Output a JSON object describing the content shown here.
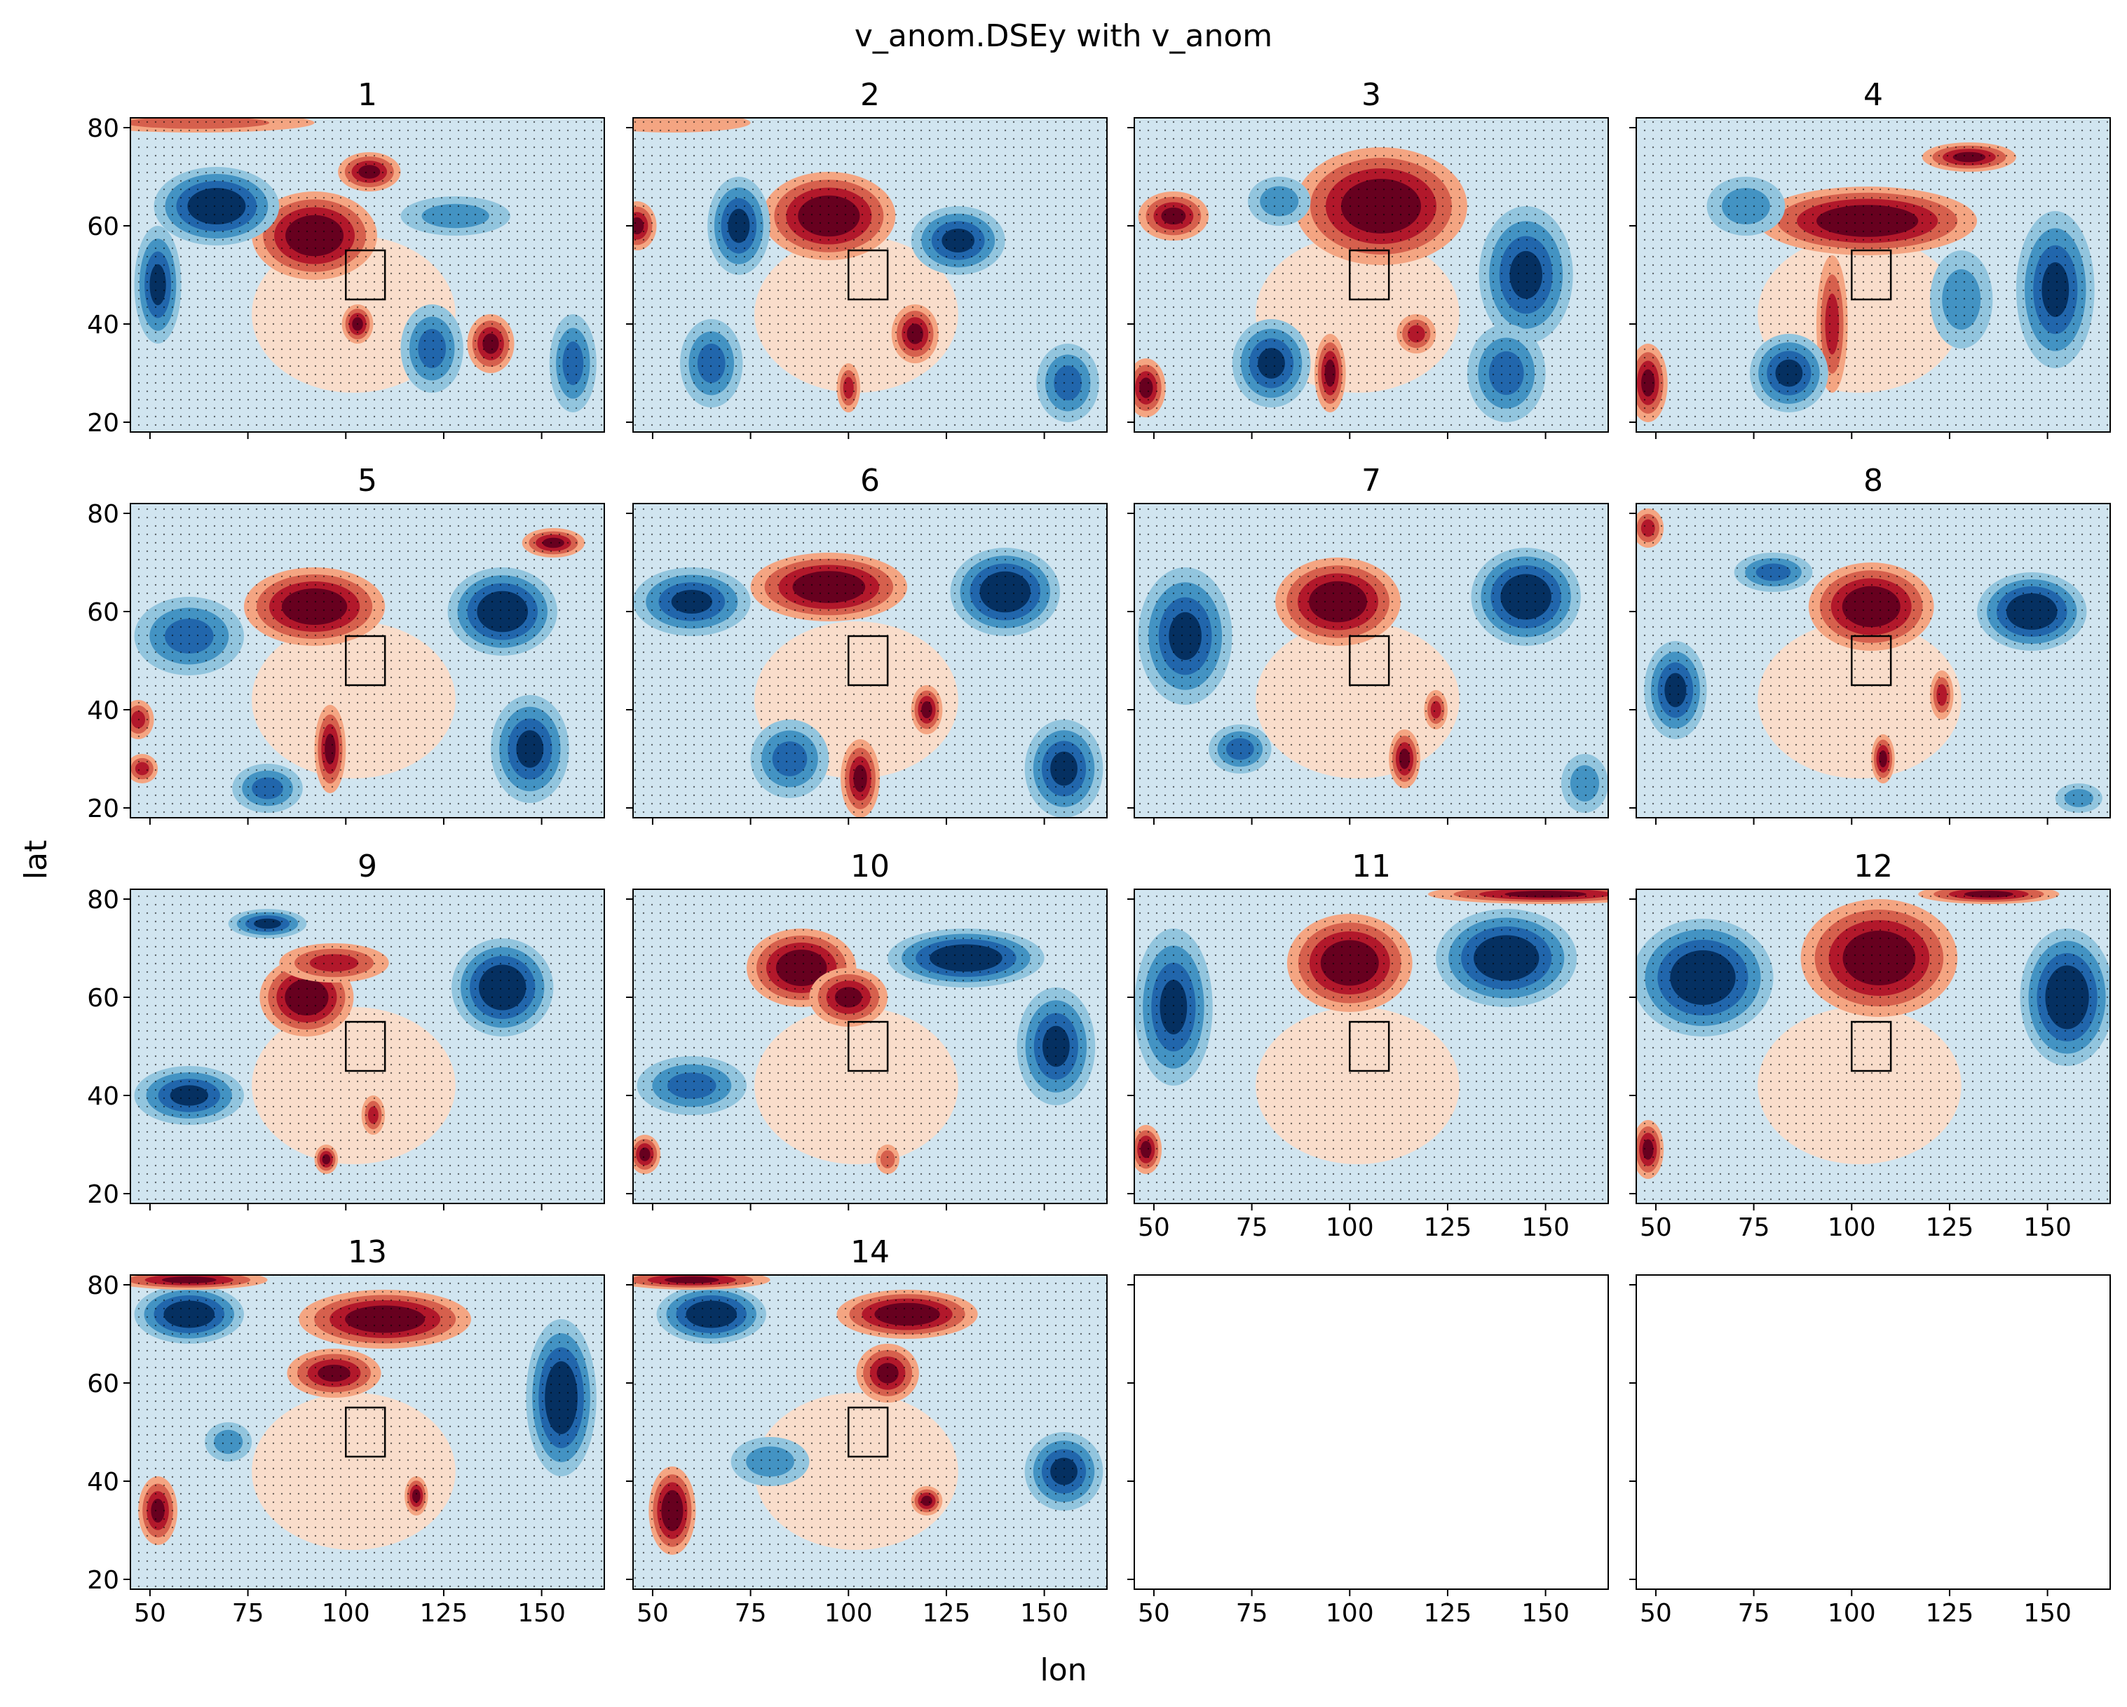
{
  "chart_data": {
    "type": "contour-quiver small multiples",
    "suptitle": "v_anom.DSEy with v_anom",
    "xlabel": "lon",
    "ylabel": "lat",
    "xlim": [
      45,
      166
    ],
    "ylim": [
      18,
      82
    ],
    "x_ticks": [
      50,
      75,
      100,
      125,
      150
    ],
    "y_ticks": [
      20,
      40,
      60,
      80
    ],
    "colormap": "RdBu_r",
    "levels_colors": [
      "#053061",
      "#2166ac",
      "#4393c3",
      "#92c5de",
      "#d1e5f0",
      "#fddbc7",
      "#f4a582",
      "#d6604d",
      "#b2182b",
      "#67001f"
    ],
    "box_region": {
      "lon": [
        100,
        110
      ],
      "lat": [
        45,
        55
      ]
    },
    "grid_layout": {
      "rows": 4,
      "cols": 4
    },
    "panels": [
      {
        "title": "1",
        "features": [
          {
            "lon": 92,
            "lat": 58,
            "w": 16,
            "h": 9,
            "value": 2.4
          },
          {
            "lon": 106,
            "lat": 71,
            "w": 8,
            "h": 4,
            "value": 1.8
          },
          {
            "lon": 103,
            "lat": 40,
            "w": 4,
            "h": 4,
            "value": 2.2
          },
          {
            "lon": 137,
            "lat": 36,
            "w": 6,
            "h": 6,
            "value": 2.0
          },
          {
            "lon": 67,
            "lat": 64,
            "w": 16,
            "h": 8,
            "value": -2.4
          },
          {
            "lon": 52,
            "lat": 48,
            "w": 6,
            "h": 12,
            "value": -1.8
          },
          {
            "lon": 122,
            "lat": 35,
            "w": 8,
            "h": 9,
            "value": -1.6
          },
          {
            "lon": 158,
            "lat": 32,
            "w": 6,
            "h": 10,
            "value": -1.5
          },
          {
            "lon": 128,
            "lat": 62,
            "w": 14,
            "h": 4,
            "value": -0.8
          },
          {
            "lon": 62,
            "lat": 81,
            "w": 30,
            "h": 2,
            "value": 1.2
          }
        ]
      },
      {
        "title": "2",
        "features": [
          {
            "lon": 95,
            "lat": 62,
            "w": 17,
            "h": 9,
            "value": 2.4
          },
          {
            "lon": 117,
            "lat": 38,
            "w": 6,
            "h": 6,
            "value": 2.0
          },
          {
            "lon": 100,
            "lat": 27,
            "w": 3,
            "h": 5,
            "value": 1.6
          },
          {
            "lon": 46,
            "lat": 60,
            "w": 5,
            "h": 5,
            "value": 2.0
          },
          {
            "lon": 72,
            "lat": 60,
            "w": 8,
            "h": 10,
            "value": -2.2
          },
          {
            "lon": 128,
            "lat": 57,
            "w": 12,
            "h": 7,
            "value": -2.2
          },
          {
            "lon": 65,
            "lat": 32,
            "w": 8,
            "h": 9,
            "value": -1.6
          },
          {
            "lon": 156,
            "lat": 28,
            "w": 8,
            "h": 8,
            "value": -1.4
          },
          {
            "lon": 55,
            "lat": 81,
            "w": 20,
            "h": 2,
            "value": 0.7
          }
        ]
      },
      {
        "title": "3",
        "features": [
          {
            "lon": 108,
            "lat": 64,
            "w": 22,
            "h": 12,
            "value": 2.4
          },
          {
            "lon": 55,
            "lat": 62,
            "w": 9,
            "h": 5,
            "value": 2.2
          },
          {
            "lon": 48,
            "lat": 27,
            "w": 5,
            "h": 6,
            "value": 2.2
          },
          {
            "lon": 95,
            "lat": 30,
            "w": 4,
            "h": 8,
            "value": 1.8
          },
          {
            "lon": 117,
            "lat": 38,
            "w": 5,
            "h": 4,
            "value": 1.6
          },
          {
            "lon": 145,
            "lat": 50,
            "w": 12,
            "h": 14,
            "value": -2.2
          },
          {
            "lon": 80,
            "lat": 32,
            "w": 10,
            "h": 9,
            "value": -2.0
          },
          {
            "lon": 140,
            "lat": 30,
            "w": 10,
            "h": 10,
            "value": -1.5
          },
          {
            "lon": 82,
            "lat": 65,
            "w": 8,
            "h": 5,
            "value": -1.2
          }
        ]
      },
      {
        "title": "4",
        "features": [
          {
            "lon": 104,
            "lat": 61,
            "w": 28,
            "h": 7,
            "value": 2.4
          },
          {
            "lon": 130,
            "lat": 74,
            "w": 12,
            "h": 3,
            "value": 1.8
          },
          {
            "lon": 95,
            "lat": 40,
            "w": 4,
            "h": 14,
            "value": 1.6
          },
          {
            "lon": 48,
            "lat": 28,
            "w": 5,
            "h": 8,
            "value": 2.0
          },
          {
            "lon": 84,
            "lat": 30,
            "w": 10,
            "h": 8,
            "value": -1.8
          },
          {
            "lon": 152,
            "lat": 47,
            "w": 10,
            "h": 16,
            "value": -2.2
          },
          {
            "lon": 73,
            "lat": 64,
            "w": 10,
            "h": 6,
            "value": -1.2
          },
          {
            "lon": 128,
            "lat": 45,
            "w": 8,
            "h": 10,
            "value": -1.0
          }
        ]
      },
      {
        "title": "5",
        "features": [
          {
            "lon": 92,
            "lat": 61,
            "w": 18,
            "h": 8,
            "value": 2.4
          },
          {
            "lon": 96,
            "lat": 32,
            "w": 4,
            "h": 9,
            "value": 2.0
          },
          {
            "lon": 48,
            "lat": 28,
            "w": 4,
            "h": 3,
            "value": 1.6
          },
          {
            "lon": 47,
            "lat": 38,
            "w": 4,
            "h": 4,
            "value": 1.6
          },
          {
            "lon": 153,
            "lat": 74,
            "w": 8,
            "h": 3,
            "value": 1.8
          },
          {
            "lon": 140,
            "lat": 60,
            "w": 14,
            "h": 9,
            "value": -2.3
          },
          {
            "lon": 147,
            "lat": 32,
            "w": 10,
            "h": 11,
            "value": -2.0
          },
          {
            "lon": 60,
            "lat": 55,
            "w": 14,
            "h": 8,
            "value": -1.6
          },
          {
            "lon": 80,
            "lat": 24,
            "w": 9,
            "h": 5,
            "value": -1.4
          }
        ]
      },
      {
        "title": "6",
        "features": [
          {
            "lon": 95,
            "lat": 65,
            "w": 20,
            "h": 7,
            "value": 2.4
          },
          {
            "lon": 103,
            "lat": 26,
            "w": 5,
            "h": 8,
            "value": 2.0
          },
          {
            "lon": 120,
            "lat": 40,
            "w": 4,
            "h": 5,
            "value": 1.8
          },
          {
            "lon": 140,
            "lat": 64,
            "w": 14,
            "h": 9,
            "value": -2.4
          },
          {
            "lon": 60,
            "lat": 62,
            "w": 15,
            "h": 7,
            "value": -2.2
          },
          {
            "lon": 155,
            "lat": 28,
            "w": 10,
            "h": 10,
            "value": -1.8
          },
          {
            "lon": 85,
            "lat": 30,
            "w": 10,
            "h": 8,
            "value": -1.4
          }
        ]
      },
      {
        "title": "7",
        "features": [
          {
            "lon": 97,
            "lat": 62,
            "w": 16,
            "h": 9,
            "value": 2.4
          },
          {
            "lon": 114,
            "lat": 30,
            "w": 4,
            "h": 6,
            "value": 2.0
          },
          {
            "lon": 122,
            "lat": 40,
            "w": 3,
            "h": 4,
            "value": 1.6
          },
          {
            "lon": 145,
            "lat": 63,
            "w": 14,
            "h": 10,
            "value": -2.4
          },
          {
            "lon": 58,
            "lat": 55,
            "w": 12,
            "h": 14,
            "value": -2.2
          },
          {
            "lon": 72,
            "lat": 32,
            "w": 8,
            "h": 5,
            "value": -1.4
          },
          {
            "lon": 160,
            "lat": 25,
            "w": 6,
            "h": 6,
            "value": -1.2
          }
        ]
      },
      {
        "title": "8",
        "features": [
          {
            "lon": 105,
            "lat": 61,
            "w": 16,
            "h": 9,
            "value": 2.4
          },
          {
            "lon": 108,
            "lat": 30,
            "w": 3,
            "h": 5,
            "value": 1.8
          },
          {
            "lon": 123,
            "lat": 43,
            "w": 3,
            "h": 5,
            "value": 1.6
          },
          {
            "lon": 48,
            "lat": 77,
            "w": 4,
            "h": 4,
            "value": 1.4
          },
          {
            "lon": 146,
            "lat": 60,
            "w": 14,
            "h": 8,
            "value": -2.4
          },
          {
            "lon": 55,
            "lat": 44,
            "w": 8,
            "h": 10,
            "value": -2.2
          },
          {
            "lon": 80,
            "lat": 68,
            "w": 10,
            "h": 4,
            "value": -1.4
          },
          {
            "lon": 158,
            "lat": 22,
            "w": 6,
            "h": 3,
            "value": -1.0
          }
        ]
      },
      {
        "title": "9",
        "features": [
          {
            "lon": 90,
            "lat": 60,
            "w": 12,
            "h": 8,
            "value": 2.4
          },
          {
            "lon": 97,
            "lat": 67,
            "w": 14,
            "h": 4,
            "value": 1.6
          },
          {
            "lon": 95,
            "lat": 27,
            "w": 3,
            "h": 3,
            "value": 1.8
          },
          {
            "lon": 107,
            "lat": 36,
            "w": 3,
            "h": 4,
            "value": 1.6
          },
          {
            "lon": 140,
            "lat": 62,
            "w": 13,
            "h": 10,
            "value": -2.4
          },
          {
            "lon": 60,
            "lat": 40,
            "w": 14,
            "h": 6,
            "value": -2.2
          },
          {
            "lon": 80,
            "lat": 75,
            "w": 10,
            "h": 3,
            "value": -1.8
          }
        ]
      },
      {
        "title": "10",
        "features": [
          {
            "lon": 88,
            "lat": 66,
            "w": 14,
            "h": 8,
            "value": 2.4
          },
          {
            "lon": 100,
            "lat": 60,
            "w": 10,
            "h": 6,
            "value": 2.2
          },
          {
            "lon": 48,
            "lat": 28,
            "w": 4,
            "h": 4,
            "value": 1.8
          },
          {
            "lon": 130,
            "lat": 68,
            "w": 20,
            "h": 6,
            "value": -2.3
          },
          {
            "lon": 153,
            "lat": 50,
            "w": 10,
            "h": 12,
            "value": -1.8
          },
          {
            "lon": 60,
            "lat": 42,
            "w": 14,
            "h": 6,
            "value": -1.6
          },
          {
            "lon": 110,
            "lat": 27,
            "w": 3,
            "h": 3,
            "value": 1.2
          }
        ]
      },
      {
        "title": "11",
        "features": [
          {
            "lon": 100,
            "lat": 67,
            "w": 16,
            "h": 10,
            "value": 2.4
          },
          {
            "lon": 48,
            "lat": 29,
            "w": 4,
            "h": 5,
            "value": 2.2
          },
          {
            "lon": 140,
            "lat": 68,
            "w": 18,
            "h": 10,
            "value": -2.4
          },
          {
            "lon": 55,
            "lat": 58,
            "w": 10,
            "h": 16,
            "value": -2.2
          },
          {
            "lon": 150,
            "lat": 81,
            "w": 30,
            "h": 2,
            "value": 1.8
          }
        ]
      },
      {
        "title": "12",
        "features": [
          {
            "lon": 107,
            "lat": 68,
            "w": 20,
            "h": 12,
            "value": 2.4
          },
          {
            "lon": 48,
            "lat": 29,
            "w": 4,
            "h": 6,
            "value": 2.2
          },
          {
            "lon": 62,
            "lat": 64,
            "w": 18,
            "h": 12,
            "value": -2.4
          },
          {
            "lon": 155,
            "lat": 60,
            "w": 12,
            "h": 14,
            "value": -2.4
          },
          {
            "lon": 135,
            "lat": 81,
            "w": 18,
            "h": 2,
            "value": 1.8
          }
        ]
      },
      {
        "title": "13",
        "features": [
          {
            "lon": 110,
            "lat": 73,
            "w": 22,
            "h": 6,
            "value": 2.4
          },
          {
            "lon": 97,
            "lat": 62,
            "w": 12,
            "h": 5,
            "value": 2.0
          },
          {
            "lon": 52,
            "lat": 34,
            "w": 5,
            "h": 7,
            "value": 2.2
          },
          {
            "lon": 60,
            "lat": 74,
            "w": 14,
            "h": 6,
            "value": -2.4
          },
          {
            "lon": 155,
            "lat": 57,
            "w": 9,
            "h": 16,
            "value": -2.3
          },
          {
            "lon": 70,
            "lat": 48,
            "w": 6,
            "h": 4,
            "value": -1.2
          },
          {
            "lon": 60,
            "lat": 81,
            "w": 20,
            "h": 2,
            "value": 2.2
          },
          {
            "lon": 118,
            "lat": 37,
            "w": 3,
            "h": 4,
            "value": 1.8
          }
        ]
      },
      {
        "title": "14",
        "features": [
          {
            "lon": 115,
            "lat": 74,
            "w": 18,
            "h": 5,
            "value": 2.4
          },
          {
            "lon": 110,
            "lat": 62,
            "w": 8,
            "h": 6,
            "value": 2.0
          },
          {
            "lon": 55,
            "lat": 34,
            "w": 6,
            "h": 9,
            "value": 2.4
          },
          {
            "lon": 120,
            "lat": 36,
            "w": 4,
            "h": 3,
            "value": 2.0
          },
          {
            "lon": 65,
            "lat": 74,
            "w": 14,
            "h": 6,
            "value": -2.4
          },
          {
            "lon": 155,
            "lat": 42,
            "w": 10,
            "h": 8,
            "value": -1.8
          },
          {
            "lon": 80,
            "lat": 44,
            "w": 10,
            "h": 5,
            "value": -1.2
          },
          {
            "lon": 60,
            "lat": 81,
            "w": 20,
            "h": 2,
            "value": 2.0
          }
        ]
      },
      {
        "title": "",
        "features": []
      },
      {
        "title": "",
        "features": []
      }
    ]
  }
}
